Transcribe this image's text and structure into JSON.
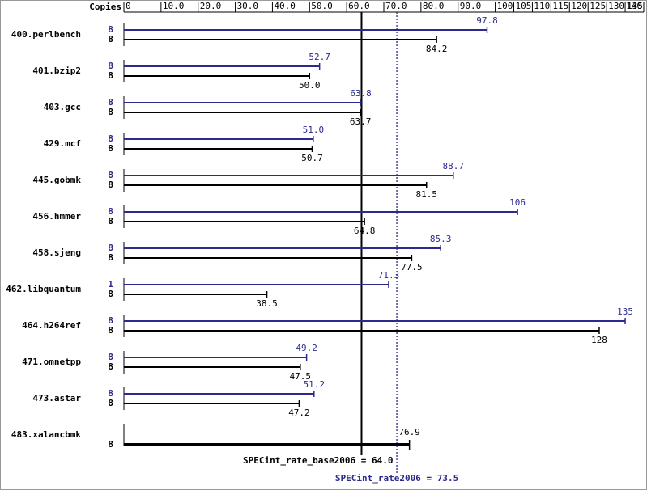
{
  "chart_data": {
    "type": "bar",
    "copies_label": "Copies",
    "categories": [
      "400.perlbench",
      "401.bzip2",
      "403.gcc",
      "429.mcf",
      "445.gobmk",
      "456.hmmer",
      "458.sjeng",
      "462.libquantum",
      "464.h264ref",
      "471.omnetpp",
      "473.astar",
      "483.xalancbmk"
    ],
    "series": [
      {
        "color": "#2b2b8f",
        "copies": [
          8,
          8,
          8,
          8,
          8,
          8,
          8,
          1,
          8,
          8,
          8,
          null
        ],
        "values": [
          97.8,
          52.7,
          63.8,
          51.0,
          88.7,
          106,
          85.3,
          71.3,
          135,
          49.2,
          51.2,
          null
        ],
        "value_labels": [
          "97.8",
          "52.7",
          "63.8",
          "51.0",
          "88.7",
          "106",
          "85.3",
          "71.3",
          "135",
          "49.2",
          "51.2",
          null
        ]
      },
      {
        "color": "#000000",
        "copies": [
          8,
          8,
          8,
          8,
          8,
          8,
          8,
          8,
          8,
          8,
          8,
          8
        ],
        "values": [
          84.2,
          50.0,
          63.7,
          50.7,
          81.5,
          64.8,
          77.5,
          38.5,
          128,
          47.5,
          47.2,
          76.9
        ],
        "value_labels": [
          "84.2",
          "50.0",
          "63.7",
          "50.7",
          "81.5",
          "64.8",
          "77.5",
          "38.5",
          "128",
          "47.5",
          "47.2",
          "76.9"
        ]
      }
    ],
    "reference_lines": [
      {
        "label": "SPECint_rate_base2006 = 64.0",
        "value": 64.0,
        "color": "#000000",
        "style": "solid"
      },
      {
        "label": "SPECint_rate2006 = 73.5",
        "value": 73.5,
        "color": "#2b2b8f",
        "style": "dotted"
      }
    ],
    "xlim": [
      0,
      140
    ],
    "xticks": [
      0,
      {
        "value": 10,
        "label": "10.0"
      },
      {
        "value": 20,
        "label": "20.0"
      },
      {
        "value": 30,
        "label": "30.0"
      },
      {
        "value": 40,
        "label": "40.0"
      },
      {
        "value": 50,
        "label": "50.0"
      },
      {
        "value": 60,
        "label": "60.0"
      },
      {
        "value": 70,
        "label": "70.0"
      },
      {
        "value": 80,
        "label": "80.0"
      },
      {
        "value": 90,
        "label": "90.0"
      },
      100,
      105,
      110,
      115,
      120,
      125,
      130,
      135,
      140
    ]
  }
}
